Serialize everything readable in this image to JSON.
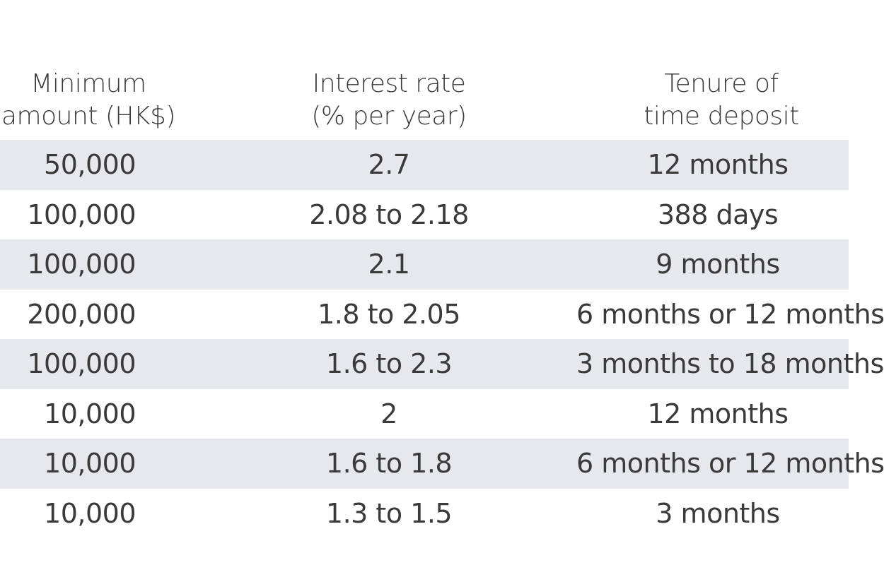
{
  "table": {
    "headers": {
      "amount": "Minimum\namount (HK$)",
      "rate": "Interest rate\n(% per year)",
      "tenure": "Tenure of\ntime deposit"
    },
    "rows": [
      {
        "amount": "50,000",
        "rate": "2.7",
        "tenure": "12 months"
      },
      {
        "amount": "100,000",
        "rate": "2.08 to 2.18",
        "tenure": "388 days"
      },
      {
        "amount": "100,000",
        "rate": "2.1",
        "tenure": "9 months"
      },
      {
        "amount": "200,000",
        "rate": "1.8 to 2.05",
        "tenure": "6 months or 12 months"
      },
      {
        "amount": "100,000",
        "rate": "1.6 to 2.3",
        "tenure": "3 months to 18 months"
      },
      {
        "amount": "10,000",
        "rate": "2",
        "tenure": "12 months"
      },
      {
        "amount": "10,000",
        "rate": "1.6 to 1.8",
        "tenure": "6 months or 12 months"
      },
      {
        "amount": "10,000",
        "rate": "1.3 to 1.5",
        "tenure": "3 months"
      }
    ]
  },
  "colors": {
    "shaded_row": "#e7e8ee",
    "text": "#3a3a3a"
  }
}
